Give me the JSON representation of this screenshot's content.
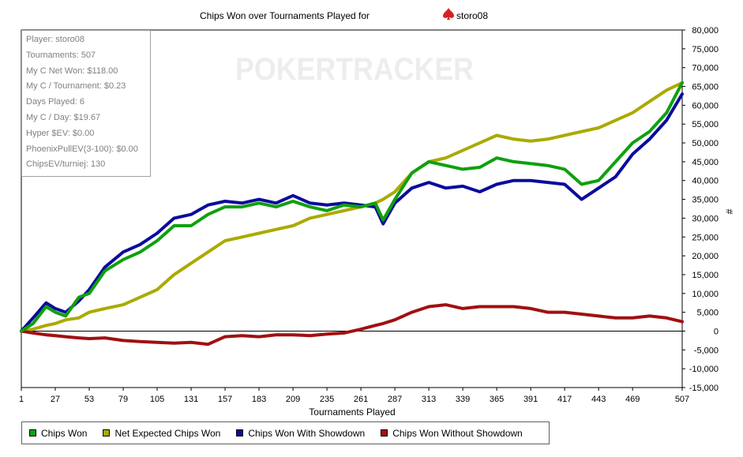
{
  "stats_box": {
    "rows": [
      "Player: storo08",
      "Tournaments: 507",
      "My C Net Won: $118.00",
      "My C / Tournament: $0.23",
      "Days Played: 6",
      "My C / Day: $19.67",
      "Hyper $EV: $0.00",
      "PhoenixPullEV(3-100): $0.00",
      "ChipsEV/turniej: 130"
    ]
  },
  "chart_data": {
    "type": "line",
    "title_prefix": "Chips Won over Tournaments Played for",
    "player": "storo08",
    "xlabel": "Tournaments Played",
    "ylabel": "#",
    "watermark": "POKERTRACKER",
    "xlim": [
      1,
      507
    ],
    "ylim": [
      -15000,
      80000
    ],
    "x_ticks": [
      1,
      27,
      53,
      79,
      105,
      131,
      157,
      183,
      209,
      235,
      261,
      287,
      313,
      339,
      365,
      391,
      417,
      443,
      469,
      507
    ],
    "y_ticks": [
      -15000,
      -10000,
      -5000,
      0,
      5000,
      10000,
      15000,
      20000,
      25000,
      30000,
      35000,
      40000,
      45000,
      50000,
      55000,
      60000,
      65000,
      70000,
      75000,
      80000
    ],
    "y_tick_labels": [
      "-15,000",
      "-10,000",
      "-5,000",
      "0",
      "5,000",
      "10,000",
      "15,000",
      "20,000",
      "25,000",
      "30,000",
      "35,000",
      "40,000",
      "45,000",
      "50,000",
      "55,000",
      "60,000",
      "65,000",
      "70,000",
      "75,000",
      "80,000"
    ],
    "x": [
      1,
      10,
      20,
      27,
      35,
      45,
      53,
      65,
      79,
      92,
      105,
      118,
      131,
      144,
      157,
      170,
      183,
      196,
      209,
      222,
      235,
      248,
      261,
      272,
      278,
      287,
      300,
      313,
      326,
      339,
      352,
      365,
      378,
      391,
      404,
      417,
      430,
      443,
      456,
      469,
      482,
      495,
      507
    ],
    "series": [
      {
        "name": "Chips Won",
        "color": "#0fa00f",
        "values": [
          0,
          2000,
          6500,
          5000,
          4000,
          9000,
          10000,
          16000,
          19000,
          21000,
          24000,
          28000,
          28000,
          31000,
          33000,
          33000,
          34000,
          33000,
          34500,
          33000,
          32000,
          33500,
          33000,
          34000,
          29500,
          35000,
          42000,
          45000,
          44000,
          43000,
          43500,
          46000,
          45000,
          44500,
          44000,
          43000,
          39000,
          40000,
          45000,
          50000,
          53000,
          58000,
          66000
        ]
      },
      {
        "name": "Net Expected Chips Won",
        "color": "#aaaa00",
        "values": [
          0,
          500,
          1500,
          2000,
          3000,
          3500,
          5000,
          6000,
          7000,
          9000,
          11000,
          15000,
          18000,
          21000,
          24000,
          25000,
          26000,
          27000,
          28000,
          30000,
          31000,
          32000,
          33000,
          34000,
          35000,
          37000,
          42000,
          45000,
          46000,
          48000,
          50000,
          52000,
          51000,
          50500,
          51000,
          52000,
          53000,
          54000,
          56000,
          58000,
          61000,
          64000,
          66000
        ]
      },
      {
        "name": "Chips Won With Showdown",
        "color": "#0b0b9c",
        "values": [
          0,
          3500,
          7500,
          6000,
          5000,
          8000,
          11000,
          17000,
          21000,
          23000,
          26000,
          30000,
          31000,
          33500,
          34500,
          34000,
          35000,
          34000,
          36000,
          34000,
          33500,
          34000,
          33500,
          33000,
          28500,
          34000,
          38000,
          39500,
          38000,
          38500,
          37000,
          39000,
          40000,
          40000,
          39500,
          39000,
          35000,
          38000,
          41000,
          47000,
          51000,
          56000,
          63000
        ]
      },
      {
        "name": "Chips Won Without Showdown",
        "color": "#a01010",
        "values": [
          0,
          -500,
          -1000,
          -1200,
          -1500,
          -1800,
          -2000,
          -1800,
          -2500,
          -2800,
          -3000,
          -3200,
          -3000,
          -3500,
          -1500,
          -1200,
          -1500,
          -1000,
          -1000,
          -1200,
          -800,
          -500,
          500,
          1500,
          2000,
          3000,
          5000,
          6500,
          7000,
          6000,
          6500,
          6500,
          6500,
          6000,
          5000,
          5000,
          4500,
          4000,
          3500,
          3500,
          4000,
          3500,
          2500
        ]
      }
    ]
  }
}
